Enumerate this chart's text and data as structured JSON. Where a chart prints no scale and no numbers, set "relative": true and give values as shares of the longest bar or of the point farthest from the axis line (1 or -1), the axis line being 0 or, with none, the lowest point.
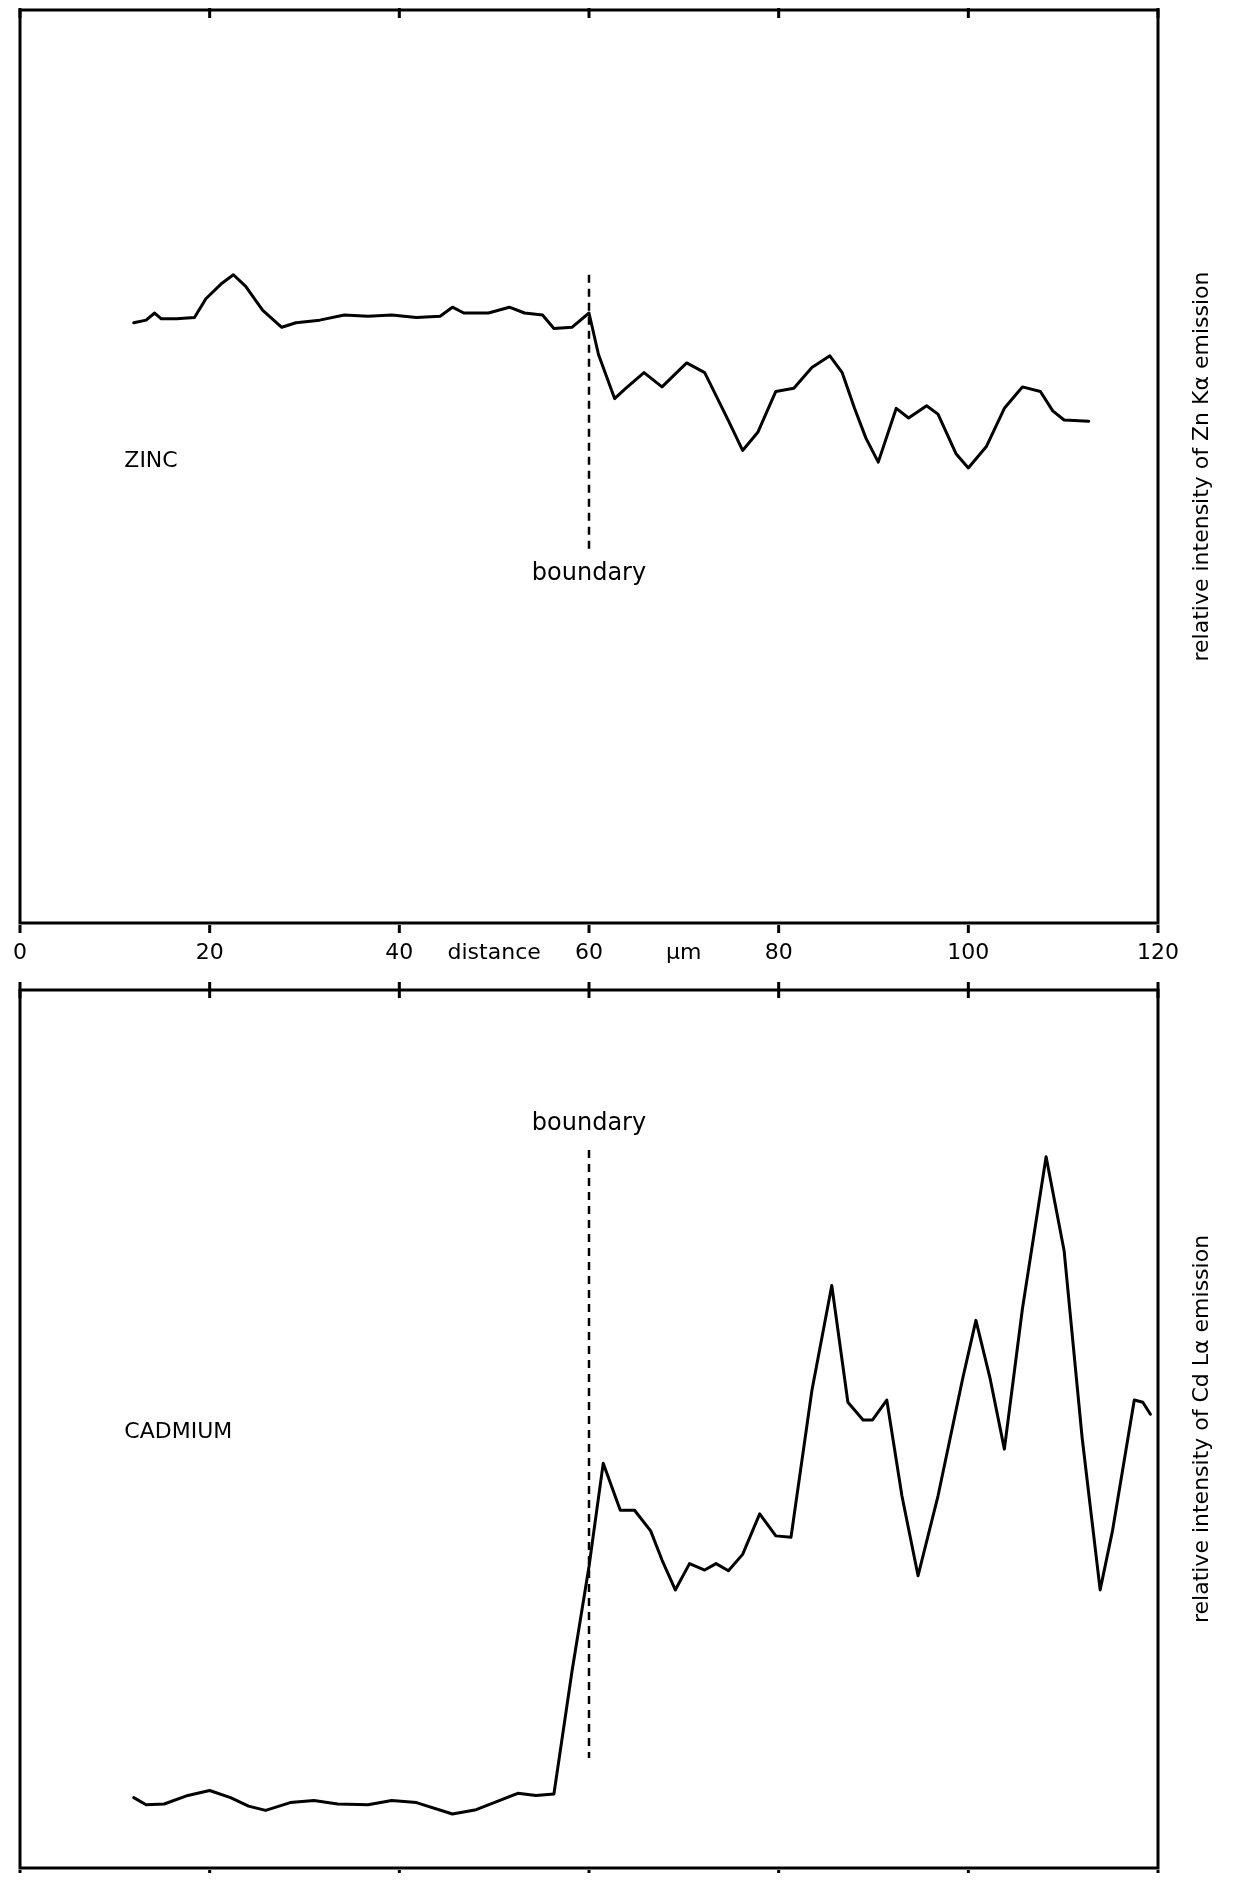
{
  "chart_data": [
    {
      "type": "line",
      "relative": true,
      "xlabel": "distance µm",
      "ylabel": "relative intensity of Zn Kα emission",
      "annotations": [
        "ZINC"
      ],
      "xlim": [
        0,
        120
      ],
      "xticks": [
        0,
        20,
        40,
        60,
        80,
        100,
        120
      ],
      "tick_labels": "x",
      "line_style": "solid",
      "ref_lines": [
        {
          "axis": "x",
          "value": 60,
          "label": "boundary",
          "line_style": "dashed"
        }
      ],
      "series": [
        {
          "color": "#000000",
          "x": [
            12.0,
            13.3,
            14.2,
            14.9,
            16.5,
            18.4,
            19.6,
            21.3,
            22.5,
            23.8,
            25.6,
            27.6,
            29.1,
            31.6,
            34.2,
            36.7,
            39.2,
            41.8,
            44.3,
            45.6,
            46.8,
            49.4,
            51.6,
            53.2,
            55.1,
            56.3,
            58.2,
            60.0,
            61.0,
            62.7,
            63.9,
            65.8,
            67.7,
            70.3,
            72.2,
            74.7,
            76.2,
            77.8,
            79.7,
            81.6,
            83.5,
            85.4,
            86.7,
            88.0,
            89.2,
            90.5,
            92.4,
            93.7,
            95.6,
            96.8,
            98.7,
            100.0,
            101.9,
            103.8,
            105.7,
            107.6,
            108.9,
            110.1,
            112.7
          ],
          "values": [
            0.926,
            0.93,
            0.941,
            0.932,
            0.932,
            0.934,
            0.963,
            0.987,
            1.0,
            0.982,
            0.945,
            0.919,
            0.926,
            0.93,
            0.938,
            0.936,
            0.938,
            0.934,
            0.936,
            0.95,
            0.941,
            0.941,
            0.95,
            0.941,
            0.938,
            0.917,
            0.919,
            0.941,
            0.877,
            0.809,
            0.825,
            0.849,
            0.827,
            0.864,
            0.849,
            0.775,
            0.729,
            0.757,
            0.82,
            0.825,
            0.857,
            0.875,
            0.849,
            0.794,
            0.748,
            0.711,
            0.794,
            0.779,
            0.798,
            0.785,
            0.724,
            0.702,
            0.735,
            0.794,
            0.827,
            0.82,
            0.79,
            0.776,
            0.774
          ]
        }
      ]
    },
    {
      "type": "line",
      "relative": true,
      "ylabel": "relative intensity of Cd Lα emission",
      "annotations": [
        "CADMIUM"
      ],
      "xlim": [
        0,
        120
      ],
      "xticks": [
        0,
        20,
        40,
        60,
        80,
        100,
        120
      ],
      "tick_labels": false,
      "line_style": "solid",
      "ref_lines": [
        {
          "axis": "x",
          "value": 60,
          "label": "boundary",
          "line_style": "dashed"
        }
      ],
      "series": [
        {
          "color": "#000000",
          "x": [
            12.0,
            13.3,
            15.2,
            17.7,
            20.0,
            22.2,
            24.1,
            25.9,
            28.5,
            31.0,
            33.5,
            36.7,
            39.2,
            41.8,
            45.6,
            48.1,
            50.6,
            52.5,
            54.4,
            56.3,
            58.2,
            60.0,
            61.5,
            63.3,
            64.8,
            66.5,
            67.7,
            69.1,
            70.6,
            72.2,
            73.4,
            74.7,
            76.2,
            78.0,
            79.7,
            81.3,
            83.5,
            85.6,
            87.3,
            88.9,
            89.9,
            91.4,
            93.0,
            94.7,
            96.8,
            99.4,
            100.8,
            102.3,
            103.8,
            105.7,
            108.2,
            110.1,
            112.0,
            113.9,
            115.2,
            117.5,
            118.4,
            119.2
          ],
          "values": [
            0.099,
            0.089,
            0.09,
            0.102,
            0.109,
            0.099,
            0.087,
            0.081,
            0.092,
            0.095,
            0.09,
            0.089,
            0.095,
            0.092,
            0.076,
            0.082,
            0.095,
            0.105,
            0.102,
            0.104,
            0.276,
            0.424,
            0.569,
            0.503,
            0.503,
            0.474,
            0.433,
            0.391,
            0.428,
            0.419,
            0.428,
            0.418,
            0.441,
            0.498,
            0.467,
            0.465,
            0.671,
            0.819,
            0.655,
            0.63,
            0.63,
            0.658,
            0.523,
            0.411,
            0.523,
            0.688,
            0.77,
            0.688,
            0.589,
            0.786,
            1.0,
            0.868,
            0.605,
            0.391,
            0.474,
            0.658,
            0.655,
            0.638
          ]
        }
      ]
    }
  ]
}
